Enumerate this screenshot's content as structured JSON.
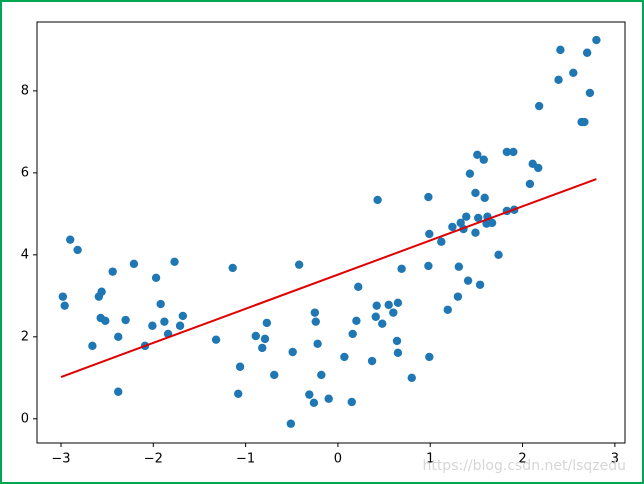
{
  "chart_data": {
    "type": "scatter",
    "xlim": [
      -3.26,
      3.11
    ],
    "ylim": [
      -0.59,
      9.68
    ],
    "xticks": [
      {
        "value": -3,
        "label": "−3"
      },
      {
        "value": -2,
        "label": "−2"
      },
      {
        "value": -1,
        "label": "−1"
      },
      0,
      1,
      2,
      3
    ],
    "yticks": [
      0,
      2,
      4,
      6,
      8
    ],
    "watermark": "https://blog.csdn.net/lsqzedu",
    "series": [
      {
        "type": "scatter",
        "color": "#1f77b4",
        "x": [
          -2.98,
          -2.96,
          -2.9,
          -2.82,
          -2.66,
          -2.59,
          -2.56,
          -2.57,
          -2.52,
          -2.44,
          -2.38,
          -2.38,
          -2.3,
          -2.21,
          -2.09,
          -2.01,
          -1.97,
          -1.92,
          -1.88,
          -1.84,
          -1.77,
          -1.71,
          -1.68,
          -1.32,
          -1.14,
          -1.08,
          -1.06,
          -0.89,
          -0.82,
          -0.79,
          -0.77,
          -0.69,
          -0.51,
          -0.49,
          -0.42,
          -0.31,
          -0.26,
          -0.25,
          -0.24,
          -0.22,
          -0.18,
          -0.1,
          0.07,
          0.15,
          0.16,
          0.2,
          0.22,
          0.37,
          0.41,
          0.42,
          0.43,
          0.48,
          0.55,
          0.6,
          0.64,
          0.65,
          0.65,
          0.69,
          0.8,
          0.98,
          0.98,
          0.99,
          0.99,
          1.12,
          1.19,
          1.24,
          1.3,
          1.31,
          1.33,
          1.36,
          1.39,
          1.41,
          1.43,
          1.49,
          1.49,
          1.51,
          1.52,
          1.54,
          1.58,
          1.59,
          1.61,
          1.62,
          1.67,
          1.74,
          1.83,
          1.83,
          1.9,
          1.91,
          2.08,
          2.11,
          2.17,
          2.18,
          2.39,
          2.41,
          2.55,
          2.64,
          2.67,
          2.7,
          2.73,
          2.8
        ],
        "values": [
          2.98,
          2.76,
          4.37,
          4.12,
          1.78,
          2.98,
          3.1,
          2.46,
          2.39,
          3.59,
          2.0,
          0.66,
          2.41,
          3.78,
          1.78,
          2.27,
          3.44,
          2.8,
          2.37,
          2.07,
          3.83,
          2.27,
          2.51,
          1.93,
          3.68,
          0.61,
          1.27,
          2.02,
          1.73,
          1.95,
          2.34,
          1.07,
          -0.12,
          1.63,
          3.76,
          0.59,
          0.39,
          2.59,
          2.37,
          1.83,
          1.07,
          0.49,
          1.51,
          0.41,
          2.07,
          2.39,
          3.22,
          1.41,
          2.49,
          2.76,
          5.34,
          2.32,
          2.78,
          2.59,
          1.9,
          2.83,
          1.61,
          3.66,
          1.0,
          3.73,
          5.41,
          4.51,
          1.51,
          4.32,
          2.66,
          4.68,
          2.98,
          3.71,
          4.78,
          4.63,
          4.93,
          3.37,
          5.98,
          5.51,
          4.54,
          6.44,
          4.9,
          3.27,
          6.32,
          5.39,
          4.76,
          4.93,
          4.78,
          4.0,
          6.51,
          5.07,
          6.51,
          5.1,
          5.73,
          6.22,
          6.12,
          7.63,
          8.27,
          9.0,
          8.44,
          7.24,
          7.24,
          8.93,
          7.95,
          9.24
        ]
      },
      {
        "type": "line",
        "color": "#e00000",
        "x": [
          -3,
          2.8
        ],
        "values": [
          1.02,
          5.85
        ]
      }
    ]
  }
}
